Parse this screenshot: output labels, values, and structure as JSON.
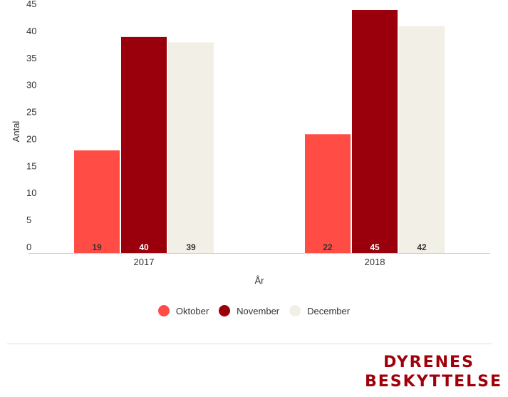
{
  "chart_data": {
    "type": "bar",
    "categories": [
      "2017",
      "2018"
    ],
    "series": [
      {
        "name": "Oktober",
        "values": [
          19,
          22
        ],
        "color": "#ff4d45",
        "label_color": "#333333"
      },
      {
        "name": "November",
        "values": [
          40,
          45
        ],
        "color": "#9a000b",
        "label_color": "#ffffff"
      },
      {
        "name": "December",
        "values": [
          39,
          42
        ],
        "color": "#f2efe6",
        "label_color": "#333333"
      }
    ],
    "xlabel": "År",
    "ylabel": "Antal",
    "ylim": [
      0,
      45
    ],
    "yticks": [
      0,
      5,
      10,
      15,
      20,
      25,
      30,
      35,
      40,
      45
    ],
    "grid": false,
    "legend_position": "bottom"
  },
  "logo": {
    "line1": "DYRENES",
    "line2": "BESKYTTELSE"
  }
}
